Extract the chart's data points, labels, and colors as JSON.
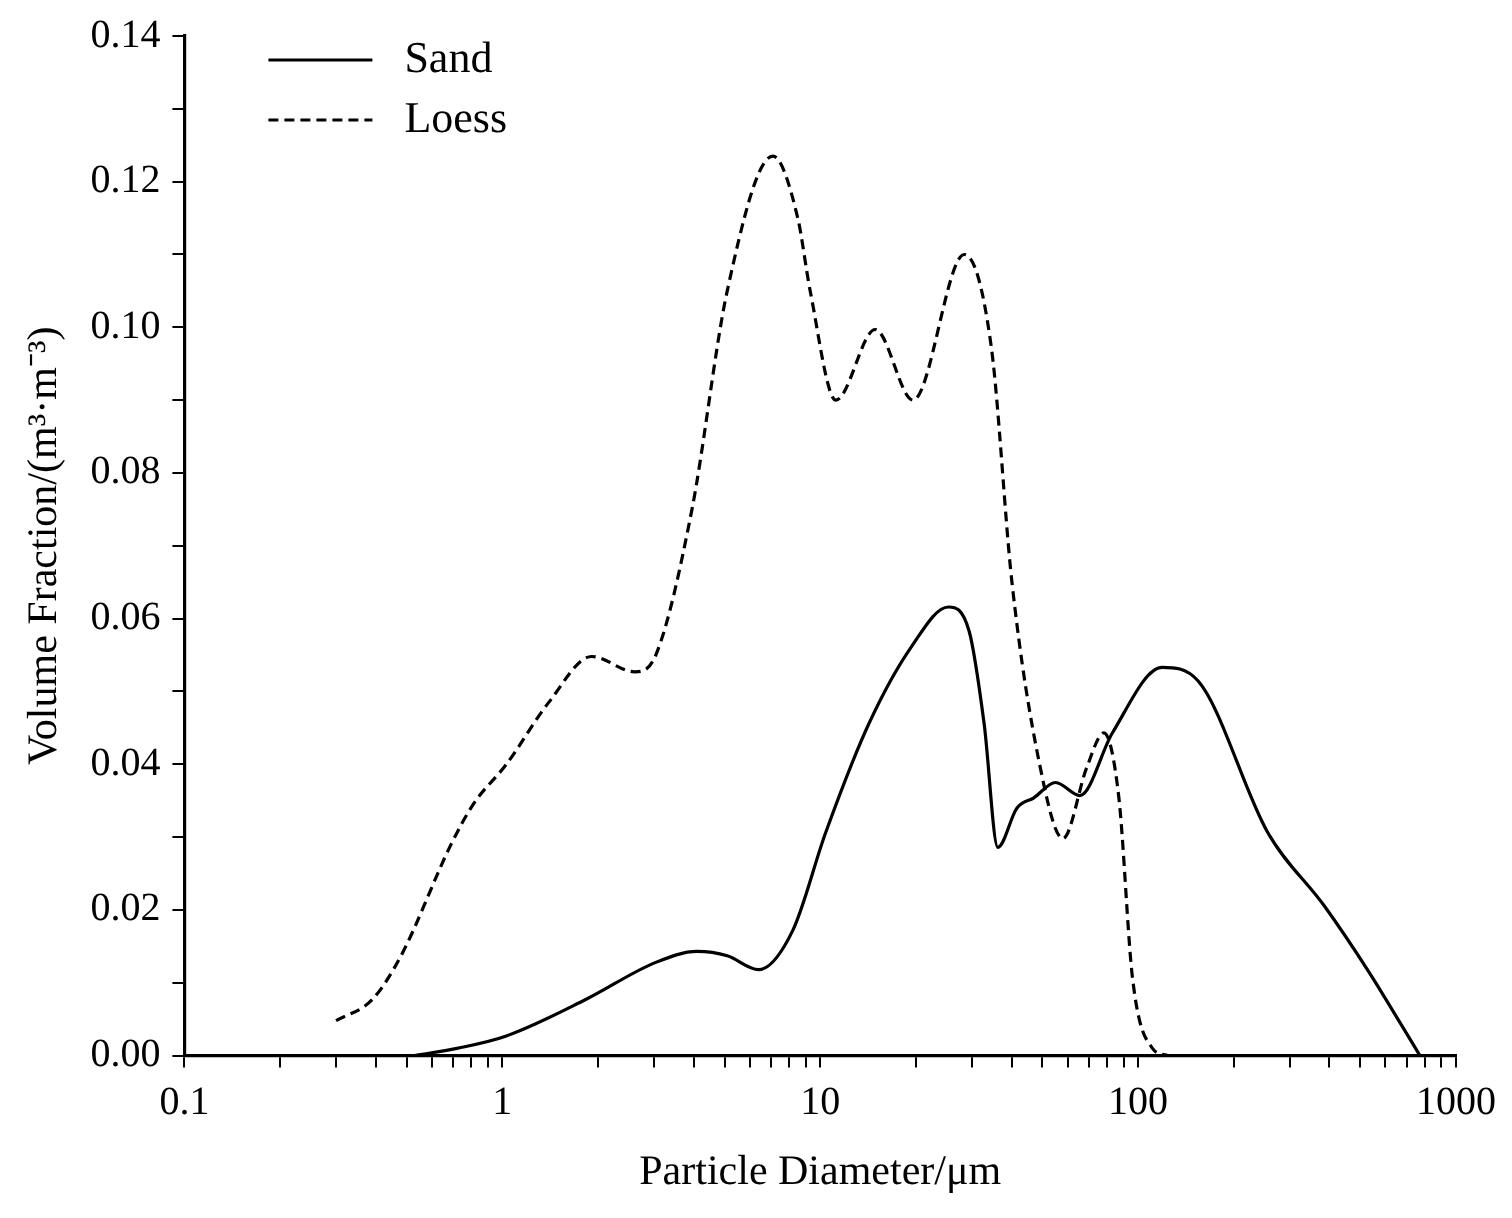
{
  "chart_data": {
    "type": "line",
    "xlabel": "Particle Diameter/μm",
    "ylabel": "Volume Fraction/(m³·m⁻³)",
    "log": "x",
    "grid": false,
    "legend": "top left",
    "marker": "none",
    "xlim": [
      0.1,
      1000
    ],
    "xticks": [
      0.1,
      {
        "value": 0.2,
        "label": null
      },
      {
        "value": 0.3,
        "label": null
      },
      {
        "value": 0.4,
        "label": null
      },
      {
        "value": 0.5,
        "label": null
      },
      {
        "value": 0.6,
        "label": null
      },
      {
        "value": 0.7,
        "label": null
      },
      {
        "value": 0.8,
        "label": null
      },
      {
        "value": 0.9,
        "label": null
      },
      1,
      {
        "value": 2,
        "label": null
      },
      {
        "value": 3,
        "label": null
      },
      {
        "value": 4,
        "label": null
      },
      {
        "value": 5,
        "label": null
      },
      {
        "value": 6,
        "label": null
      },
      {
        "value": 7,
        "label": null
      },
      {
        "value": 8,
        "label": null
      },
      {
        "value": 9,
        "label": null
      },
      10,
      {
        "value": 20,
        "label": null
      },
      {
        "value": 30,
        "label": null
      },
      {
        "value": 40,
        "label": null
      },
      {
        "value": 50,
        "label": null
      },
      {
        "value": 60,
        "label": null
      },
      {
        "value": 70,
        "label": null
      },
      {
        "value": 80,
        "label": null
      },
      {
        "value": 90,
        "label": null
      },
      100,
      {
        "value": 200,
        "label": null
      },
      {
        "value": 300,
        "label": null
      },
      {
        "value": 400,
        "label": null
      },
      {
        "value": 500,
        "label": null
      },
      {
        "value": 600,
        "label": null
      },
      {
        "value": 700,
        "label": null
      },
      {
        "value": 800,
        "label": null
      },
      {
        "value": 900,
        "label": null
      },
      1000
    ],
    "ylim": [
      0,
      0.14
    ],
    "yticks": [
      {
        "value": 0,
        "label": "0.00"
      },
      {
        "value": 0.01,
        "label": null
      },
      {
        "value": 0.02,
        "label": "0.02"
      },
      {
        "value": 0.03,
        "label": null
      },
      {
        "value": 0.04,
        "label": "0.04"
      },
      {
        "value": 0.05,
        "label": null
      },
      {
        "value": 0.06,
        "label": "0.06"
      },
      {
        "value": 0.07,
        "label": null
      },
      {
        "value": 0.08,
        "label": "0.08"
      },
      {
        "value": 0.09,
        "label": null
      },
      {
        "value": 0.1,
        "label": "0.10"
      },
      {
        "value": 0.11,
        "label": null
      },
      {
        "value": 0.12,
        "label": "0.12"
      },
      {
        "value": 0.13,
        "label": null
      },
      {
        "value": 0.14,
        "label": "0.14"
      }
    ],
    "series": [
      {
        "name": "Sand",
        "color": "#000000",
        "line_style": "solid",
        "x": [
          0.53,
          0.72,
          1.03,
          1.83,
          3.04,
          4.1,
          5.1,
          6.4,
          8.2,
          10.4,
          14.2,
          19.4,
          25.3,
          29.4,
          32.8,
          36.2,
          41.6,
          47,
          55,
          65.6,
          83,
          119,
          154,
          256,
          386,
          530,
          680,
          770
        ],
        "values": [
          0,
          0.001,
          0.0027,
          0.0077,
          0.0128,
          0.0143,
          0.0137,
          0.0118,
          0.0172,
          0.0306,
          0.0455,
          0.0562,
          0.0616,
          0.0583,
          0.0455,
          0.0286,
          0.034,
          0.0354,
          0.0375,
          0.0357,
          0.0443,
          0.0533,
          0.0515,
          0.0306,
          0.0205,
          0.0116,
          0.0039,
          0
        ]
      },
      {
        "name": "Loess",
        "color": "#000000",
        "line_style": "dashed",
        "x": [
          0.3,
          0.39,
          0.48,
          0.69,
          0.81,
          1.03,
          1.4,
          1.91,
          2.61,
          3.04,
          3.95,
          5.1,
          7.1,
          8.5,
          9.3,
          11.2,
          14.9,
          19.6,
          28.4,
          34.6,
          40.1,
          49,
          58,
          69,
          78,
          87,
          96,
          111,
          124
        ],
        "values": [
          0.0048,
          0.0077,
          0.0137,
          0.029,
          0.0345,
          0.04,
          0.0485,
          0.0548,
          0.0527,
          0.055,
          0.075,
          0.105,
          0.1235,
          0.115,
          0.105,
          0.09,
          0.0997,
          0.09,
          0.11,
          0.097,
          0.065,
          0.04,
          0.0298,
          0.0396,
          0.0443,
          0.0354,
          0.0107,
          0.001,
          0
        ]
      }
    ]
  }
}
